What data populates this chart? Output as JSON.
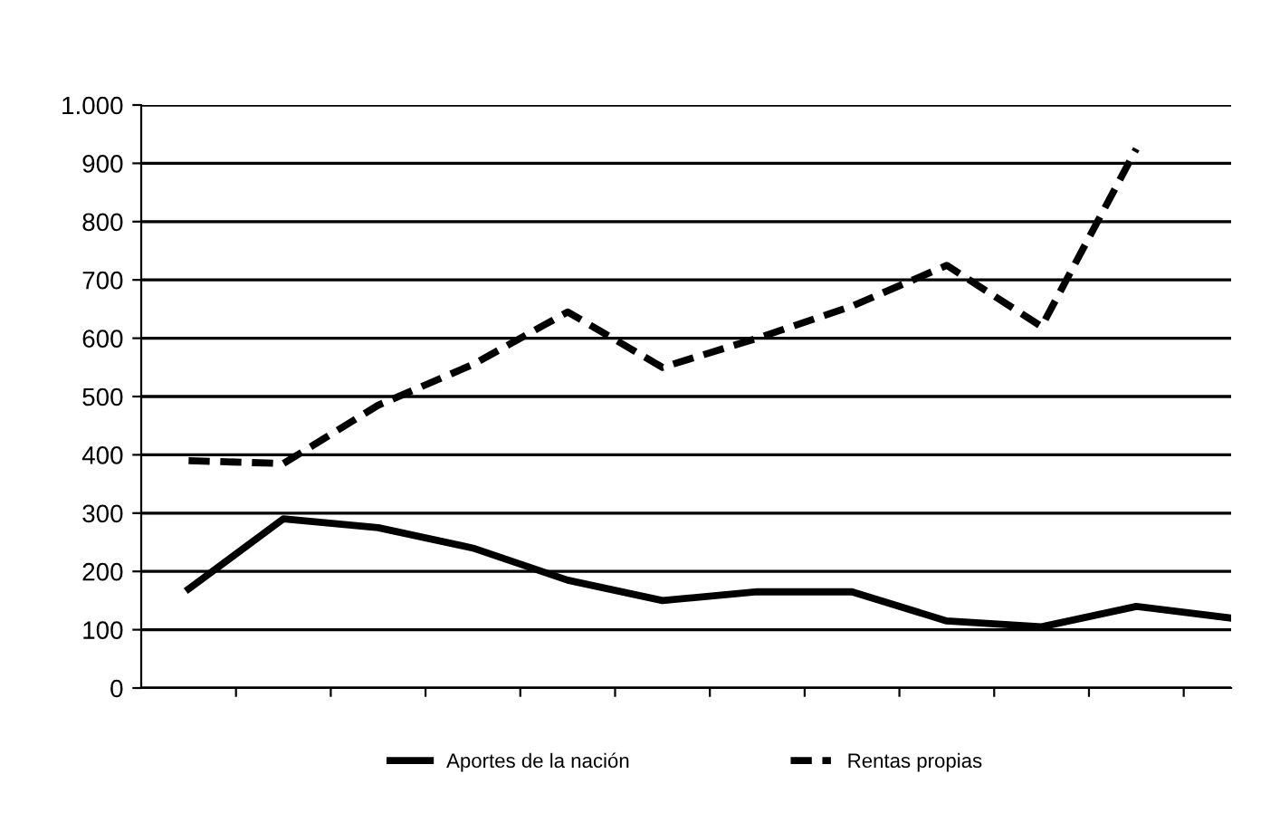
{
  "chart_data": {
    "type": "line",
    "categories": [
      null,
      null,
      null,
      null,
      null,
      null,
      null,
      null,
      null,
      null,
      null,
      null
    ],
    "series": [
      {
        "name": "Aportes de la nación",
        "color": "#000000",
        "line_style": "solid",
        "values": [
          170,
          290,
          275,
          240,
          185,
          150,
          165,
          165,
          115,
          105,
          140,
          120
        ]
      },
      {
        "name": "Rentas propias",
        "color": "#000000",
        "line_style": "dashed",
        "values": [
          390,
          385,
          485,
          555,
          645,
          550,
          600,
          655,
          725,
          620,
          925,
          null
        ]
      }
    ],
    "ylim": [
      0,
      1000
    ],
    "yticks": [
      0,
      100,
      200,
      300,
      400,
      500,
      600,
      700,
      800,
      900,
      {
        "value": 1000,
        "label": "1.000"
      }
    ],
    "grid": "y",
    "legend": "bottom",
    "marker": "none"
  }
}
